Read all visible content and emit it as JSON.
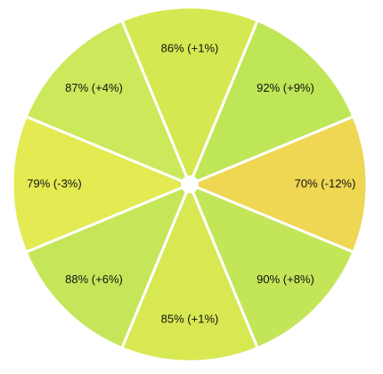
{
  "chart_data": {
    "type": "radial",
    "values": [
      86,
      92,
      70,
      90,
      85,
      88,
      79,
      87
    ],
    "changes": [
      1,
      9,
      -12,
      8,
      1,
      6,
      -3,
      4
    ],
    "value_labels": [
      "86% (+1%)",
      "92% (+9%)",
      "70% (-12%)",
      "90% (+8%)",
      "85% (+1%)",
      "88% (+6%)",
      "79% (-3%)",
      "87% (+4%)"
    ],
    "colors": [
      "#d5e851",
      "#bfe656",
      "#efd653",
      "#c3e659",
      "#d7e853",
      "#c6e65a",
      "#e3ea52",
      "#cce85b"
    ]
  }
}
